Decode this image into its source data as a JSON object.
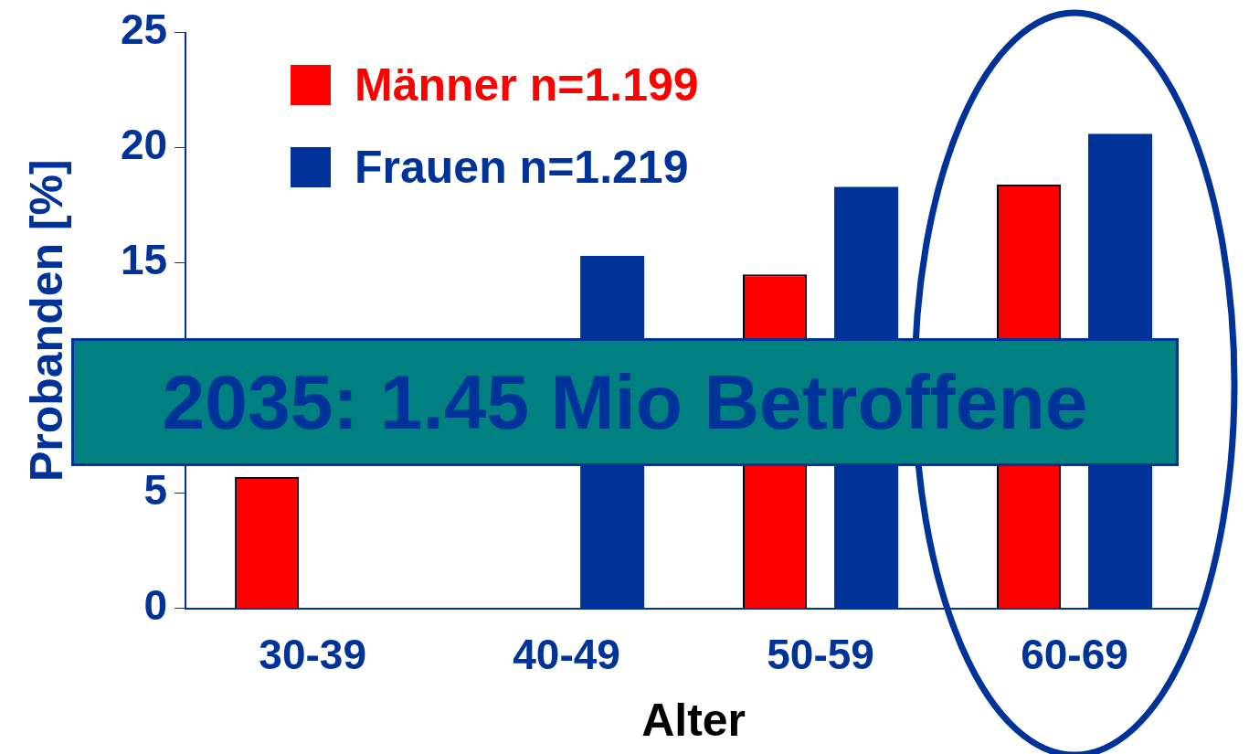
{
  "chart_data": {
    "type": "bar",
    "xlabel": "Alter",
    "ylabel": "Probanden [%]",
    "categories": [
      "30-39",
      "40-49",
      "50-59",
      "60-69"
    ],
    "series": [
      {
        "name": "Männer n=1.199",
        "color": "#ff0000",
        "values": [
          5.7,
          null,
          14.5,
          18.4
        ]
      },
      {
        "name": "Frauen n=1.219",
        "color": "#003399",
        "values": [
          null,
          15.3,
          18.3,
          20.6
        ]
      }
    ],
    "ylim": [
      0,
      25
    ],
    "yticks": [
      0,
      5,
      15,
      20,
      25
    ],
    "grid": false,
    "legend": "top left",
    "annotations": [
      "2035: 1.45 Mio Betroffene"
    ]
  }
}
